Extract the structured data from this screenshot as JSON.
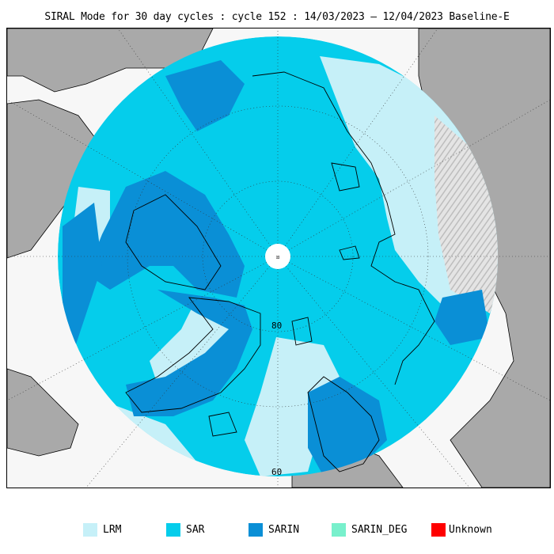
{
  "title": "SIRAL Mode for 30 day cycles : cycle 152 : 14/03/2023 – 12/04/2023 Baseline-E",
  "map": {
    "lat_labels": [
      "80",
      "60"
    ],
    "pole_marker": "¤",
    "colors": {
      "land": "#a9a9a9",
      "ocean": "#f7f7f7",
      "lrm": "#c6f0f8",
      "sar": "#05cdeb",
      "sarin": "#0a8fd6",
      "sarin_deg": "#78f0cc",
      "unknown": "#ff0000",
      "hatch": "#bfbfbf"
    }
  },
  "legend": {
    "items": [
      {
        "label": "LRM",
        "color": "#c6f0f8"
      },
      {
        "label": "SAR",
        "color": "#05cdeb"
      },
      {
        "label": "SARIN",
        "color": "#0a8fd6"
      },
      {
        "label": "SARIN_DEG",
        "color": "#78f0cc"
      },
      {
        "label": "Unknown",
        "color": "#ff0000"
      }
    ]
  }
}
